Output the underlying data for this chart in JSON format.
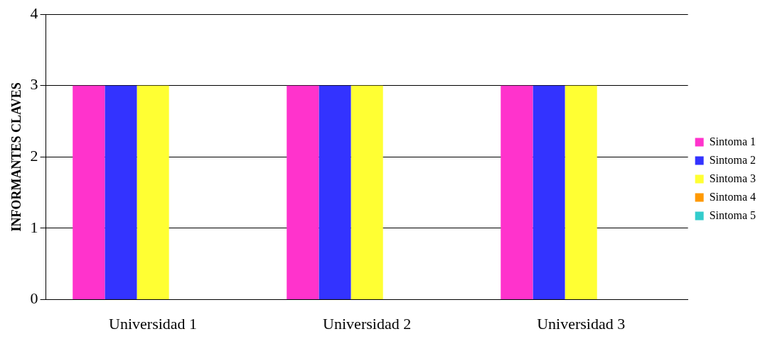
{
  "chart_data": {
    "type": "bar",
    "ylabel": "INFORMANTES CLAVES",
    "categories": [
      "Universidad 1",
      "Universidad 2",
      "Universidad 3"
    ],
    "series": [
      {
        "name": "Sintoma 1",
        "color": "#ff33cc",
        "values": [
          3,
          3,
          3
        ]
      },
      {
        "name": "Sintoma 2",
        "color": "#3333ff",
        "values": [
          3,
          3,
          3
        ]
      },
      {
        "name": "Sintoma 3",
        "color": "#ffff33",
        "values": [
          3,
          3,
          3
        ]
      },
      {
        "name": "Sintoma 4",
        "color": "#ff9900",
        "values": [
          0,
          0,
          0
        ]
      },
      {
        "name": "Sintoma 5",
        "color": "#33cccc",
        "values": [
          0,
          0,
          0
        ]
      }
    ],
    "ylim": [
      0,
      4
    ],
    "yticks": [
      0,
      1,
      2,
      3,
      4
    ],
    "grid": "y",
    "legend": "right"
  }
}
